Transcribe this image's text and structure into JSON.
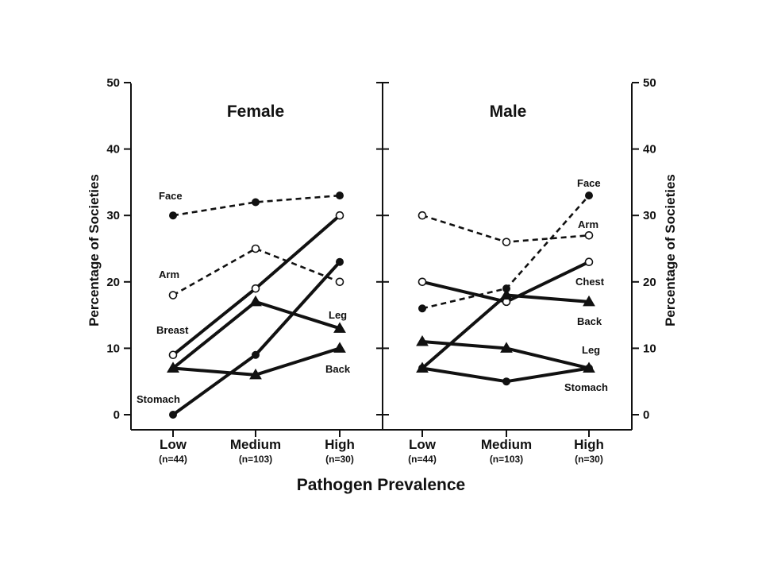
{
  "chart_data": {
    "type": "line",
    "xlabel": "Pathogen Prevalence",
    "ylabel": "Percentage of Societies",
    "ylim": [
      0,
      50
    ],
    "yticks": [
      0,
      10,
      20,
      30,
      40,
      50
    ],
    "categories": [
      "Low",
      "Medium",
      "High"
    ],
    "category_counts": [
      "(n=44)",
      "(n=103)",
      "(n=30)"
    ],
    "panels": [
      {
        "title": "Female",
        "series": [
          {
            "name": "Face",
            "values": [
              30,
              32,
              33
            ],
            "line": "dashed",
            "marker": "filled-circle"
          },
          {
            "name": "Arm",
            "values": [
              18,
              25,
              20
            ],
            "line": "dashed",
            "marker": "open-circle"
          },
          {
            "name": "Breast",
            "values": [
              9,
              19,
              30
            ],
            "line": "solid",
            "marker": "open-circle"
          },
          {
            "name": "Leg",
            "values": [
              7,
              17,
              13
            ],
            "line": "solid",
            "marker": "triangle"
          },
          {
            "name": "Stomach",
            "values": [
              0,
              9,
              23
            ],
            "line": "solid",
            "marker": "filled-circle"
          },
          {
            "name": "Back",
            "values": [
              7,
              6,
              10
            ],
            "line": "solid",
            "marker": "triangle"
          }
        ]
      },
      {
        "title": "Male",
        "series": [
          {
            "name": "Face",
            "values": [
              16,
              19,
              33
            ],
            "line": "dashed",
            "marker": "filled-circle"
          },
          {
            "name": "Arm",
            "values": [
              30,
              26,
              27
            ],
            "line": "dashed",
            "marker": "open-circle"
          },
          {
            "name": "Chest",
            "values": [
              20,
              17,
              23
            ],
            "line": "solid",
            "marker": "open-circle"
          },
          {
            "name": "Back",
            "values": [
              7,
              18,
              17
            ],
            "line": "solid",
            "marker": "triangle"
          },
          {
            "name": "Leg",
            "values": [
              11,
              10,
              7
            ],
            "line": "solid",
            "marker": "triangle"
          },
          {
            "name": "Stomach",
            "values": [
              7,
              5,
              7
            ],
            "line": "solid",
            "marker": "filled-circle"
          }
        ]
      }
    ],
    "colors": {
      "ink": "#111111",
      "background": "#ffffff"
    }
  }
}
